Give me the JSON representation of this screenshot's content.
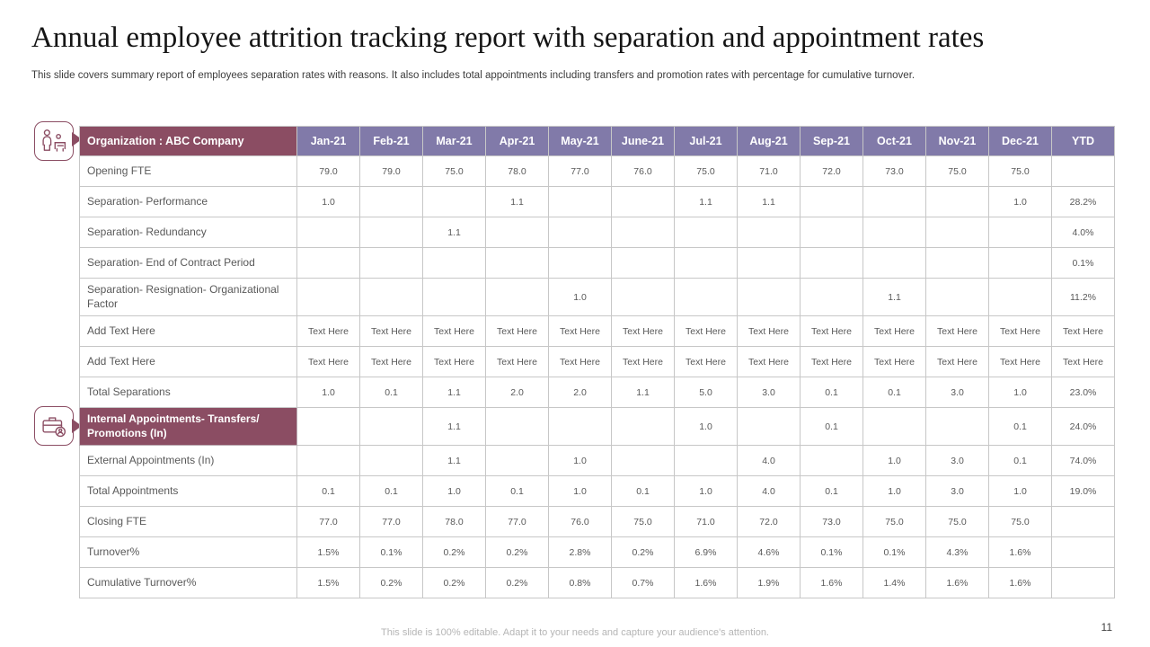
{
  "slide": {
    "title": "Annual employee attrition tracking report with separation and appointment rates",
    "subtitle": "This slide covers summary report of employees separation rates with reasons. It also includes total appointments including transfers and promotion rates with percentage for cumulative turnover.",
    "footer": "This slide is 100% editable. Adapt it to your needs and capture your audience's attention.",
    "page_number": "11"
  },
  "colors": {
    "maroon_accent": "#8B4D63",
    "purple_accent": "#817AA9",
    "grid_border": "#c7c7c7",
    "body_text": "#595959"
  },
  "icons": [
    {
      "name": "employee-attrition-icon"
    },
    {
      "name": "briefcase-appointment-icon"
    }
  ],
  "table": {
    "header": [
      "Organization : ABC Company",
      "Jan-21",
      "Feb-21",
      "Mar-21",
      "Apr-21",
      "May-21",
      "June-21",
      "Jul-21",
      "Aug-21",
      "Sep-21",
      "Oct-21",
      "Nov-21",
      "Dec-21",
      "YTD"
    ],
    "rows": [
      {
        "label": "Opening FTE",
        "highlight": false,
        "cells": [
          "79.0",
          "79.0",
          "75.0",
          "78.0",
          "77.0",
          "76.0",
          "75.0",
          "71.0",
          "72.0",
          "73.0",
          "75.0",
          "75.0",
          ""
        ]
      },
      {
        "label": "Separation- Performance",
        "highlight": false,
        "cells": [
          "1.0",
          "",
          "",
          "1.1",
          "",
          "",
          "1.1",
          "1.1",
          "",
          "",
          "",
          "1.0",
          "28.2%"
        ]
      },
      {
        "label": "Separation- Redundancy",
        "highlight": false,
        "cells": [
          "",
          "",
          "1.1",
          "",
          "",
          "",
          "",
          "",
          "",
          "",
          "",
          "",
          "4.0%"
        ]
      },
      {
        "label": "Separation- End of Contract Period",
        "highlight": false,
        "cells": [
          "",
          "",
          "",
          "",
          "",
          "",
          "",
          "",
          "",
          "",
          "",
          "",
          "0.1%"
        ]
      },
      {
        "label": "Separation- Resignation- Organizational Factor",
        "highlight": false,
        "cells": [
          "",
          "",
          "",
          "",
          "1.0",
          "",
          "",
          "",
          "",
          "1.1",
          "",
          "",
          "11.2%"
        ]
      },
      {
        "label": "Add Text Here",
        "highlight": false,
        "cells": [
          "Text Here",
          "Text Here",
          "Text Here",
          "Text Here",
          "Text Here",
          "Text Here",
          "Text Here",
          "Text Here",
          "Text Here",
          "Text Here",
          "Text Here",
          "Text Here",
          "Text Here"
        ]
      },
      {
        "label": "Add Text Here",
        "highlight": false,
        "cells": [
          "Text Here",
          "Text Here",
          "Text Here",
          "Text Here",
          "Text Here",
          "Text Here",
          "Text Here",
          "Text Here",
          "Text Here",
          "Text Here",
          "Text Here",
          "Text Here",
          "Text Here"
        ]
      },
      {
        "label": "Total Separations",
        "highlight": false,
        "cells": [
          "1.0",
          "0.1",
          "1.1",
          "2.0",
          "2.0",
          "1.1",
          "5.0",
          "3.0",
          "0.1",
          "0.1",
          "3.0",
          "1.0",
          "23.0%"
        ]
      },
      {
        "label": "Internal Appointments- Transfers/ Promotions (In)",
        "highlight": true,
        "cells": [
          "",
          "",
          "1.1",
          "",
          "",
          "",
          "1.0",
          "",
          "0.1",
          "",
          "",
          "0.1",
          "24.0%"
        ]
      },
      {
        "label": "External Appointments (In)",
        "highlight": false,
        "cells": [
          "",
          "",
          "1.1",
          "",
          "1.0",
          "",
          "",
          "4.0",
          "",
          "1.0",
          "3.0",
          "0.1",
          "74.0%"
        ]
      },
      {
        "label": "Total Appointments",
        "highlight": false,
        "cells": [
          "0.1",
          "0.1",
          "1.0",
          "0.1",
          "1.0",
          "0.1",
          "1.0",
          "4.0",
          "0.1",
          "1.0",
          "3.0",
          "1.0",
          "19.0%"
        ]
      },
      {
        "label": "Closing FTE",
        "highlight": false,
        "cells": [
          "77.0",
          "77.0",
          "78.0",
          "77.0",
          "76.0",
          "75.0",
          "71.0",
          "72.0",
          "73.0",
          "75.0",
          "75.0",
          "75.0",
          ""
        ]
      },
      {
        "label": "Turnover%",
        "highlight": false,
        "cells": [
          "1.5%",
          "0.1%",
          "0.2%",
          "0.2%",
          "2.8%",
          "0.2%",
          "6.9%",
          "4.6%",
          "0.1%",
          "0.1%",
          "4.3%",
          "1.6%",
          ""
        ]
      },
      {
        "label": "Cumulative Turnover%",
        "highlight": false,
        "cells": [
          "1.5%",
          "0.2%",
          "0.2%",
          "0.2%",
          "0.8%",
          "0.7%",
          "1.6%",
          "1.9%",
          "1.6%",
          "1.4%",
          "1.6%",
          "1.6%",
          ""
        ]
      }
    ]
  }
}
